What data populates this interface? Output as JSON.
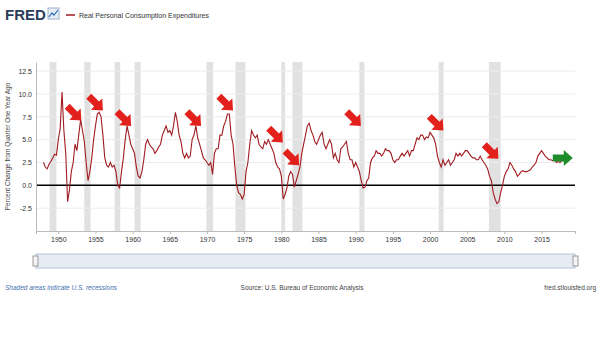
{
  "chart_data": {
    "type": "line",
    "logo": "FRED",
    "ylabel": "Percent Change from Quarter One Year Ago",
    "note": "Shaded areas indicate U.S. recessions",
    "source": "Source: U.S. Bureau of Economic Analysis",
    "url": "fred.stlouisfed.org",
    "legend": "top-left",
    "grid": true,
    "xlim": [
      1947,
      2019.5
    ],
    "xticks": [
      1950,
      1955,
      1960,
      1965,
      1970,
      1975,
      1980,
      1985,
      1990,
      1995,
      2000,
      2005,
      2010,
      2015
    ],
    "ylim": [
      -5,
      13.5
    ],
    "yticks": [
      -2.5,
      {
        "value": 0,
        "label": "0.0"
      },
      2.5,
      {
        "value": 5,
        "label": "5.0"
      },
      7.5,
      {
        "value": 10,
        "label": "10.0"
      },
      12.5
    ],
    "reference_line": 0,
    "recessions": [
      [
        1948.83,
        1949.75
      ],
      [
        1953.5,
        1954.33
      ],
      [
        1957.58,
        1958.33
      ],
      [
        1960.25,
        1961.08
      ],
      [
        1969.92,
        1970.83
      ],
      [
        1973.83,
        1975.17
      ],
      [
        1980.0,
        1980.5
      ],
      [
        1981.5,
        1982.83
      ],
      [
        1990.5,
        1991.17
      ],
      [
        2001.17,
        2001.83
      ],
      [
        2007.92,
        2009.5
      ]
    ],
    "arrows": [
      {
        "x": 1953.1,
        "y": 7.1,
        "color": "#e3211c",
        "direction": "down-right"
      },
      {
        "x": 1956.0,
        "y": 8.2,
        "color": "#e3211c",
        "direction": "down-right"
      },
      {
        "x": 1959.8,
        "y": 6.5,
        "color": "#e3211c",
        "direction": "down-right"
      },
      {
        "x": 1969.2,
        "y": 6.5,
        "color": "#e3211c",
        "direction": "down-right"
      },
      {
        "x": 1973.5,
        "y": 8.2,
        "color": "#e3211c",
        "direction": "down-right"
      },
      {
        "x": 1980.2,
        "y": 4.7,
        "color": "#e3211c",
        "direction": "down-right"
      },
      {
        "x": 1982.4,
        "y": 2.2,
        "color": "#e3211c",
        "direction": "down-right"
      },
      {
        "x": 1990.7,
        "y": 6.5,
        "color": "#e3211c",
        "direction": "down-right"
      },
      {
        "x": 2001.8,
        "y": 6.0,
        "color": "#e3211c",
        "direction": "down-right"
      },
      {
        "x": 2009.2,
        "y": 2.9,
        "color": "#e3211c",
        "direction": "down-right"
      },
      {
        "x": 2019.2,
        "y": 3.0,
        "color": "#1e8c2a",
        "direction": "right"
      }
    ],
    "x": [
      1948,
      1948.25,
      1948.5,
      1948.75,
      1949,
      1949.25,
      1949.5,
      1949.75,
      1950,
      1950.25,
      1950.5,
      1950.75,
      1951,
      1951.25,
      1951.5,
      1951.75,
      1952,
      1952.25,
      1952.5,
      1952.75,
      1953,
      1953.25,
      1953.5,
      1953.75,
      1954,
      1954.25,
      1954.5,
      1954.75,
      1955,
      1955.25,
      1955.5,
      1955.75,
      1956,
      1956.25,
      1956.5,
      1956.75,
      1957,
      1957.25,
      1957.5,
      1957.75,
      1958,
      1958.25,
      1958.5,
      1958.75,
      1959,
      1959.25,
      1959.5,
      1959.75,
      1960,
      1960.25,
      1960.5,
      1960.75,
      1961,
      1961.25,
      1961.5,
      1961.75,
      1962,
      1962.25,
      1962.5,
      1962.75,
      1963,
      1963.25,
      1963.5,
      1963.75,
      1964,
      1964.25,
      1964.5,
      1964.75,
      1965,
      1965.25,
      1965.5,
      1965.75,
      1966,
      1966.25,
      1966.5,
      1966.75,
      1967,
      1967.25,
      1967.5,
      1967.75,
      1968,
      1968.25,
      1968.5,
      1968.75,
      1969,
      1969.25,
      1969.5,
      1969.75,
      1970,
      1970.25,
      1970.5,
      1970.75,
      1971,
      1971.25,
      1971.5,
      1971.75,
      1972,
      1972.25,
      1972.5,
      1972.75,
      1973,
      1973.25,
      1973.5,
      1973.75,
      1974,
      1974.25,
      1974.5,
      1974.75,
      1975,
      1975.25,
      1975.5,
      1975.75,
      1976,
      1976.25,
      1976.5,
      1976.75,
      1977,
      1977.25,
      1977.5,
      1977.75,
      1978,
      1978.25,
      1978.5,
      1978.75,
      1979,
      1979.25,
      1979.5,
      1979.75,
      1980,
      1980.25,
      1980.5,
      1980.75,
      1981,
      1981.25,
      1981.5,
      1981.75,
      1982,
      1982.25,
      1982.5,
      1982.75,
      1983,
      1983.25,
      1983.5,
      1983.75,
      1984,
      1984.25,
      1984.5,
      1984.75,
      1985,
      1985.25,
      1985.5,
      1985.75,
      1986,
      1986.25,
      1986.5,
      1986.75,
      1987,
      1987.25,
      1987.5,
      1987.75,
      1988,
      1988.25,
      1988.5,
      1988.75,
      1989,
      1989.25,
      1989.5,
      1989.75,
      1990,
      1990.25,
      1990.5,
      1990.75,
      1991,
      1991.25,
      1991.5,
      1991.75,
      1992,
      1992.25,
      1992.5,
      1992.75,
      1993,
      1993.25,
      1993.5,
      1993.75,
      1994,
      1994.25,
      1994.5,
      1994.75,
      1995,
      1995.25,
      1995.5,
      1995.75,
      1996,
      1996.25,
      1996.5,
      1996.75,
      1997,
      1997.25,
      1997.5,
      1997.75,
      1998,
      1998.25,
      1998.5,
      1998.75,
      1999,
      1999.25,
      1999.5,
      1999.75,
      2000,
      2000.25,
      2000.5,
      2000.75,
      2001,
      2001.25,
      2001.5,
      2001.75,
      2002,
      2002.25,
      2002.5,
      2002.75,
      2003,
      2003.25,
      2003.5,
      2003.75,
      2004,
      2004.25,
      2004.5,
      2004.75,
      2005,
      2005.25,
      2005.5,
      2005.75,
      2006,
      2006.25,
      2006.5,
      2006.75,
      2007,
      2007.25,
      2007.5,
      2007.75,
      2008,
      2008.25,
      2008.5,
      2008.75,
      2009,
      2009.25,
      2009.5,
      2009.75,
      2010,
      2010.25,
      2010.5,
      2010.75,
      2011,
      2011.25,
      2011.5,
      2011.75,
      2012,
      2012.25,
      2012.5,
      2012.75,
      2013,
      2013.25,
      2013.5,
      2013.75,
      2014,
      2014.25,
      2014.5,
      2014.75,
      2015,
      2015.25,
      2015.5,
      2015.75,
      2016,
      2016.25,
      2016.5,
      2016.75,
      2017,
      2017.25,
      2017.5,
      2017.75,
      2018,
      2018.25,
      2018.5
    ],
    "series": [
      {
        "name": "Real Personal Consumption Expenditures",
        "color": "#a01b22",
        "values": [
          2.5,
          2.0,
          1.8,
          2.3,
          2.6,
          3.0,
          3.4,
          3.3,
          5.0,
          6.2,
          10.2,
          6.0,
          3.5,
          -1.8,
          -0.5,
          1.5,
          2.5,
          4.5,
          3.8,
          5.5,
          7.2,
          6.0,
          4.8,
          2.5,
          0.5,
          1.5,
          3.0,
          5.0,
          6.5,
          7.8,
          8.0,
          7.5,
          5.5,
          3.0,
          2.2,
          2.0,
          2.5,
          2.0,
          2.2,
          1.5,
          0.0,
          -0.3,
          1.5,
          3.0,
          5.0,
          6.5,
          5.5,
          4.5,
          4.0,
          3.5,
          2.0,
          1.0,
          0.8,
          1.5,
          2.8,
          4.5,
          5.0,
          4.5,
          4.2,
          4.0,
          3.5,
          3.8,
          4.2,
          4.5,
          5.5,
          6.0,
          6.5,
          5.8,
          6.0,
          5.5,
          6.5,
          8.0,
          7.0,
          5.5,
          4.8,
          3.5,
          3.0,
          3.5,
          3.0,
          3.2,
          5.0,
          5.5,
          6.5,
          5.2,
          4.5,
          3.8,
          3.0,
          2.8,
          2.5,
          2.2,
          2.5,
          1.2,
          3.5,
          4.0,
          4.0,
          5.5,
          5.5,
          6.5,
          7.0,
          7.8,
          7.8,
          5.5,
          4.5,
          2.0,
          0.0,
          -0.8,
          -1.0,
          -1.5,
          -1.0,
          1.5,
          2.5,
          4.5,
          6.0,
          5.5,
          5.2,
          5.5,
          4.5,
          4.2,
          4.0,
          4.8,
          4.5,
          5.0,
          4.5,
          4.0,
          3.5,
          2.5,
          2.0,
          1.8,
          1.0,
          -1.5,
          -1.0,
          -0.3,
          1.0,
          1.5,
          1.2,
          -0.2,
          0.5,
          1.2,
          2.0,
          3.5,
          4.5,
          5.5,
          6.5,
          6.8,
          6.0,
          5.5,
          4.8,
          4.5,
          5.0,
          5.5,
          5.8,
          4.5,
          4.0,
          4.5,
          5.0,
          4.5,
          3.0,
          3.5,
          2.8,
          2.5,
          4.0,
          4.2,
          4.5,
          4.8,
          3.5,
          2.8,
          2.8,
          2.0,
          2.5,
          2.0,
          1.5,
          0.5,
          -0.3,
          -0.2,
          0.5,
          0.8,
          2.5,
          3.0,
          3.2,
          3.8,
          3.5,
          3.5,
          3.2,
          3.5,
          4.0,
          3.8,
          3.8,
          3.5,
          2.8,
          2.5,
          2.8,
          2.8,
          3.2,
          3.5,
          3.2,
          3.5,
          3.8,
          3.2,
          3.8,
          3.8,
          4.5,
          5.2,
          5.0,
          5.5,
          5.5,
          5.0,
          5.3,
          5.2,
          5.8,
          5.5,
          5.2,
          4.5,
          3.2,
          2.5,
          2.0,
          2.8,
          2.2,
          2.5,
          2.8,
          2.2,
          2.5,
          2.8,
          3.5,
          3.2,
          3.5,
          3.2,
          3.5,
          3.8,
          3.8,
          3.5,
          3.2,
          3.0,
          3.0,
          2.8,
          2.8,
          3.2,
          2.8,
          2.5,
          2.2,
          1.8,
          1.0,
          0.5,
          -0.8,
          -1.5,
          -2.0,
          -1.8,
          -0.8,
          0.0,
          1.0,
          1.5,
          1.8,
          2.5,
          2.2,
          1.8,
          1.5,
          1.0,
          1.2,
          1.5,
          1.6,
          1.5,
          1.5,
          1.6,
          1.7,
          2.0,
          2.2,
          2.5,
          3.2,
          3.5,
          3.8,
          3.5,
          3.2,
          3.0,
          2.8,
          2.8,
          2.7,
          2.8,
          2.5,
          2.6,
          2.5,
          2.8,
          2.7,
          2.6,
          3.0
        ]
      }
    ]
  }
}
